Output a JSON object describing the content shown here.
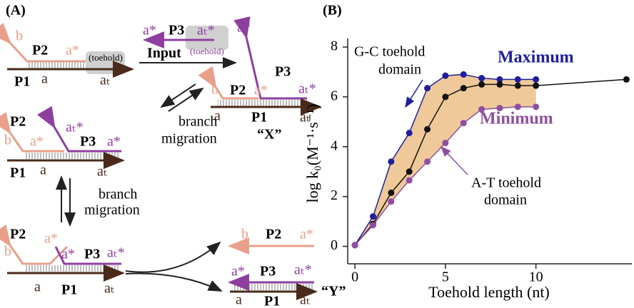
{
  "diagram": {
    "panel_label": "(A)",
    "top_left": {
      "b": "b",
      "p2": "P2",
      "a_star": "a*",
      "toehold": "(toehold)",
      "p1": "P1",
      "a": "a",
      "at": "aₜ"
    },
    "input": {
      "a_star": "a*",
      "p3": "P3",
      "at_star": "aₜ*",
      "input": "Input",
      "toehold": "(toehold)"
    },
    "x_complex": {
      "a_star": "a*",
      "p3": "P3",
      "b": "b",
      "p2": "P2",
      "a_star2": "a*",
      "at_star": "aₜ*",
      "a": "a",
      "p1": "P1",
      "at": "aₜ",
      "name": "“X”"
    },
    "branch_migration_1": [
      "branch",
      "migration"
    ],
    "middle": {
      "p2": "P2",
      "b": "b",
      "at_star": "aₜ*",
      "a_star": "a*",
      "p3": "P3",
      "a_star2": "a*",
      "p1": "P1",
      "a": "a",
      "at": "aₜ"
    },
    "branch_migration_2": [
      "branch",
      "migration"
    ],
    "bottom": {
      "p2": "P2",
      "b": "b",
      "a_star": "a*",
      "a_star2": "a*",
      "p3": "P3",
      "at_star": "aₜ*",
      "a": "a",
      "p1": "P1",
      "at": "aₜ"
    },
    "waste": {
      "b": "b",
      "p2": "P2",
      "a_star": "a*"
    },
    "y_complex": {
      "a_star": "a*",
      "p3": "P3",
      "at_star": "aₜ*",
      "a": "a",
      "p1": "P1",
      "at": "aₜ",
      "name": "“Y”"
    }
  },
  "chart_data": {
    "type": "line",
    "panel_label": "(B)",
    "x_label": "Toehold length (nt)",
    "y_label": "log k₀(M⁻¹·s⁻¹)",
    "xlim": [
      -0.4,
      15.3
    ],
    "xticks": [
      0,
      5,
      10
    ],
    "ylim": [
      -0.7,
      8
    ],
    "yticks": [
      0,
      2,
      4,
      6,
      8
    ],
    "band_color": "#f0c99a",
    "series": [
      {
        "name": "Maximum",
        "color": "#1f1f9e",
        "x": [
          0,
          1,
          2,
          3,
          4,
          5,
          6,
          7,
          8,
          9,
          10
        ],
        "values": [
          0.05,
          1.2,
          3.4,
          4.55,
          6.35,
          6.85,
          6.9,
          6.75,
          6.7,
          6.7,
          6.7
        ]
      },
      {
        "color": "#111111",
        "x": [
          0,
          1,
          2,
          3,
          4,
          5,
          6,
          7,
          8,
          9,
          10,
          15
        ],
        "values": [
          0.05,
          0.9,
          2.15,
          3.0,
          4.7,
          6.0,
          6.35,
          6.5,
          6.5,
          6.45,
          6.45,
          6.7
        ]
      },
      {
        "name": "Minimum",
        "color": "#8e4fa0",
        "x": [
          0,
          1,
          2,
          3,
          4,
          5,
          6,
          7,
          8,
          9,
          10
        ],
        "values": [
          0.05,
          0.85,
          1.8,
          2.65,
          3.4,
          4.15,
          4.95,
          5.5,
          5.55,
          5.6,
          5.6
        ]
      }
    ],
    "annotations": [
      [
        "G-C toehold",
        "domain"
      ],
      [
        "A-T toehold",
        "domain"
      ]
    ]
  }
}
